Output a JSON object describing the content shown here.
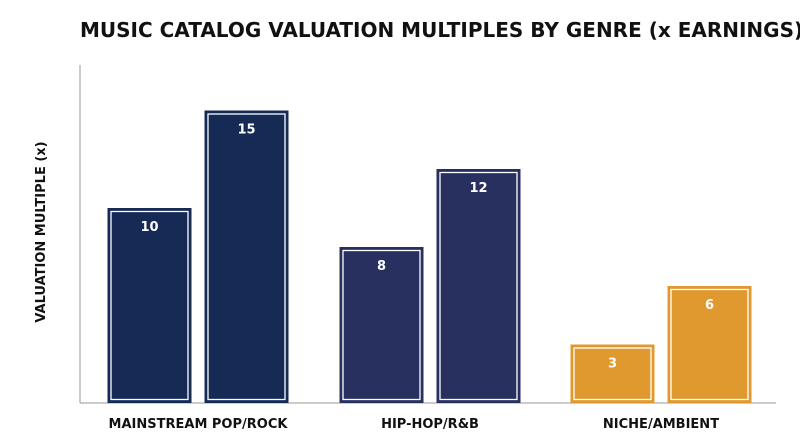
{
  "chart_data": {
    "type": "bar",
    "title": "MUSIC CATALOG VALUATION MULTIPLES BY GENRE (x EARNINGS)",
    "xlabel": "",
    "ylabel": "VALUATION MULTIPLE (x)",
    "categories": [
      "MAINSTREAM POP/ROCK",
      "HIP-HOP/R&B",
      "NICHE/AMBIENT"
    ],
    "values": [
      [
        10,
        15
      ],
      [
        8,
        12
      ],
      [
        3,
        6
      ]
    ],
    "colors": [
      "#162a56",
      "#27305e",
      "#e0992f"
    ],
    "ylim": [
      0,
      18
    ],
    "grid": false,
    "legend": "none"
  }
}
